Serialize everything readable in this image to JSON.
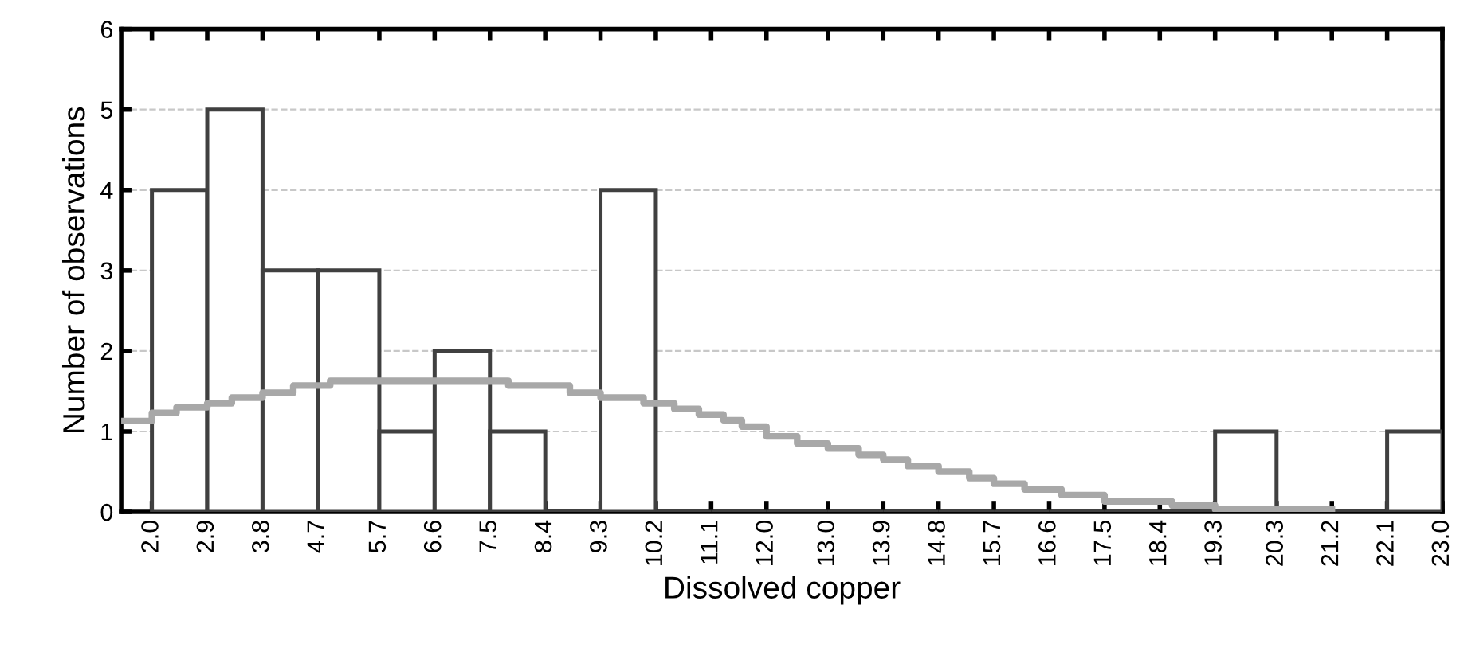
{
  "chart_data": {
    "type": "histogram",
    "xlabel": "Dissolved copper",
    "ylabel": "Number of observations",
    "bins": [
      2.0,
      2.9,
      3.8,
      4.7,
      5.7,
      6.6,
      7.5,
      8.4,
      9.3,
      10.2,
      11.1,
      12.0,
      13.0,
      13.9,
      14.8,
      15.7,
      16.6,
      17.5,
      18.4,
      19.3,
      20.3,
      21.2,
      22.1,
      23.0
    ],
    "values": [
      4,
      5,
      3,
      3,
      1,
      2,
      1,
      0,
      4,
      0,
      0,
      0,
      0,
      0,
      0,
      0,
      0,
      0,
      0,
      1,
      0,
      0,
      1
    ],
    "color": "#404040",
    "series": [
      {
        "type": "step",
        "color": "#a8a8a8",
        "x": [
          1.5,
          2.0,
          2.4,
          2.9,
          3.3,
          3.8,
          4.3,
          4.9,
          7.8,
          8.8,
          9.3,
          10.0,
          10.5,
          10.9,
          11.3,
          11.6,
          12.0,
          12.5,
          13.0,
          13.5,
          13.9,
          14.3,
          14.8,
          15.3,
          15.7,
          16.2,
          16.8,
          17.5,
          18.6,
          19.3,
          21.2
        ],
        "values": [
          1.13,
          1.23,
          1.3,
          1.35,
          1.42,
          1.48,
          1.57,
          1.63,
          1.57,
          1.48,
          1.42,
          1.35,
          1.28,
          1.21,
          1.14,
          1.06,
          0.94,
          0.85,
          0.79,
          0.71,
          0.65,
          0.57,
          0.5,
          0.42,
          0.35,
          0.28,
          0.21,
          0.13,
          0.08,
          0.03,
          0.03
        ]
      }
    ],
    "xlim": [
      1.5,
      23.0
    ],
    "ylim": [
      0,
      6
    ],
    "xticks": [
      {
        "value": 2.0,
        "label": "2.0"
      },
      {
        "value": 2.9,
        "label": "2.9"
      },
      {
        "value": 3.8,
        "label": "3.8"
      },
      {
        "value": 4.7,
        "label": "4.7"
      },
      {
        "value": 5.7,
        "label": "5.7"
      },
      {
        "value": 6.6,
        "label": "6.6"
      },
      {
        "value": 7.5,
        "label": "7.5"
      },
      {
        "value": 8.4,
        "label": "8.4"
      },
      {
        "value": 9.3,
        "label": "9.3"
      },
      {
        "value": 10.2,
        "label": "10.2"
      },
      {
        "value": 11.1,
        "label": "11.1"
      },
      {
        "value": 12.0,
        "label": "12.0"
      },
      {
        "value": 13.0,
        "label": "13.0"
      },
      {
        "value": 13.9,
        "label": "13.9"
      },
      {
        "value": 14.8,
        "label": "14.8"
      },
      {
        "value": 15.7,
        "label": "15.7"
      },
      {
        "value": 16.6,
        "label": "16.6"
      },
      {
        "value": 17.5,
        "label": "17.5"
      },
      {
        "value": 18.4,
        "label": "18.4"
      },
      {
        "value": 19.3,
        "label": "19.3"
      },
      {
        "value": 20.3,
        "label": "20.3"
      },
      {
        "value": 21.2,
        "label": "21.2"
      },
      {
        "value": 22.1,
        "label": "22.1"
      },
      {
        "value": 23.0,
        "label": "23.0"
      }
    ],
    "yticks": [
      0,
      1,
      2,
      3,
      4,
      5,
      6
    ],
    "grid": "y"
  }
}
